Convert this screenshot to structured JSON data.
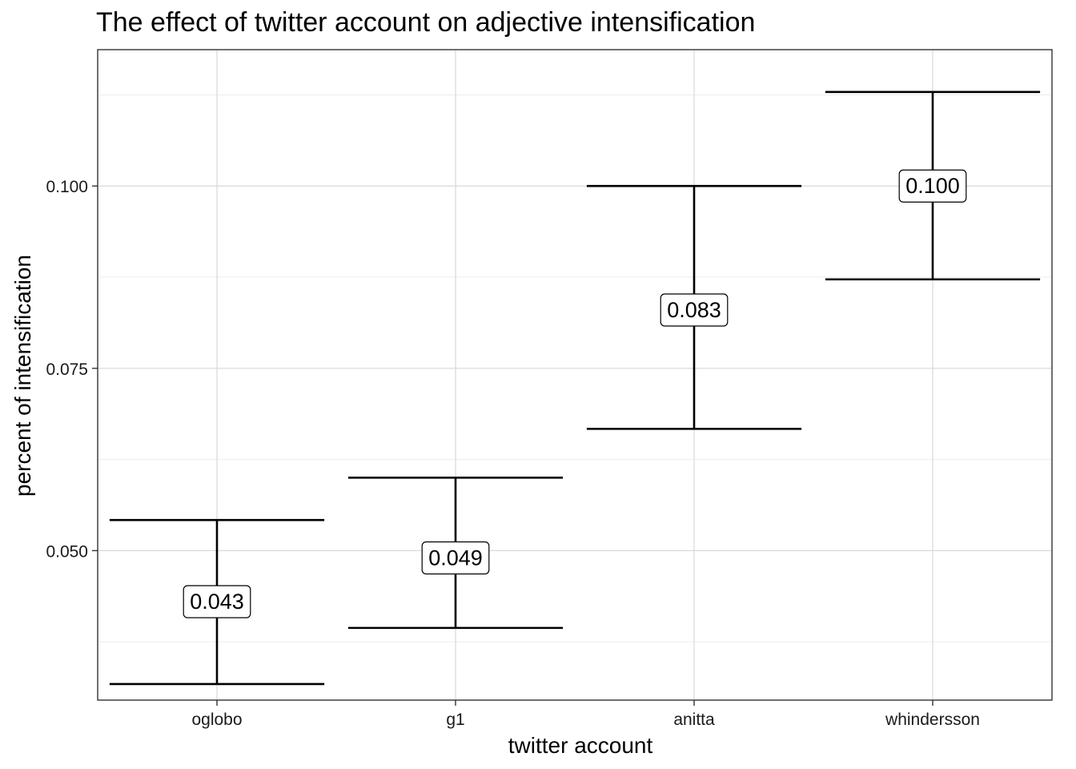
{
  "chart_data": {
    "type": "errorbar",
    "title": "The effect of twitter account on adjective intensification",
    "xlabel": "twitter account",
    "ylabel": "percent of intensification",
    "categories": [
      "oglobo",
      "g1",
      "anitta",
      "whindersson"
    ],
    "estimates": [
      0.043,
      0.049,
      0.083,
      0.1
    ],
    "estimate_labels": [
      "0.043",
      "0.049",
      "0.083",
      "0.100"
    ],
    "lower": [
      0.0317,
      0.0394,
      0.0667,
      0.0872
    ],
    "upper": [
      0.0542,
      0.06,
      0.1,
      0.1129
    ],
    "ylim": [
      0.0295,
      0.1187
    ],
    "yticks": [
      0.05,
      0.075,
      0.1
    ],
    "ytick_labels": [
      "0.050",
      "0.075",
      "0.100"
    ],
    "y_minor_gridlines": [
      0.0375,
      0.0625,
      0.0875,
      0.1125
    ],
    "grid": true,
    "legend": "none",
    "line_color": "#000000",
    "grid_color": "#d9d9d9"
  }
}
